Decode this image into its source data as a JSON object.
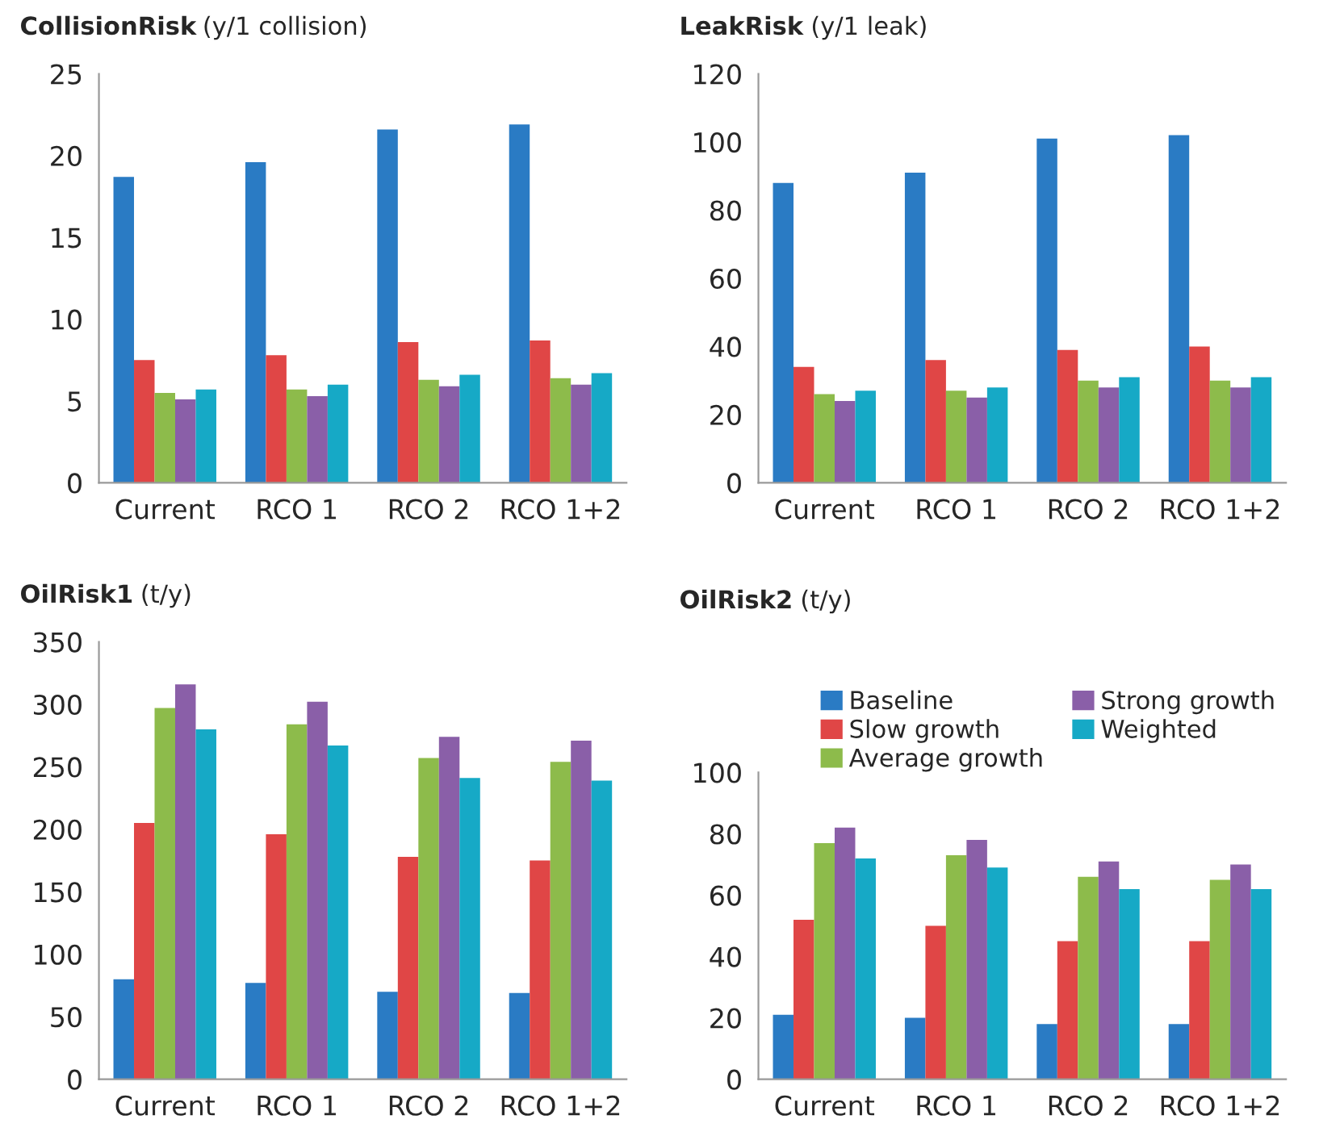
{
  "chart_data": [
    {
      "type": "bar",
      "title": "CollisionRisk",
      "subtitle": "(y/1 collision)",
      "categories": [
        "Current",
        "RCO 1",
        "RCO 2",
        "RCO 1+2"
      ],
      "ylim": [
        0,
        25
      ],
      "yticks": [
        0,
        5,
        10,
        15,
        20,
        25
      ],
      "grid": false,
      "legend": false,
      "series": [
        {
          "color": "#2a7bc4",
          "values": [
            18.7,
            19.6,
            21.6,
            21.9
          ]
        },
        {
          "color": "#e04646",
          "values": [
            7.5,
            7.8,
            8.6,
            8.7
          ]
        },
        {
          "color": "#8dbb4b",
          "values": [
            5.5,
            5.7,
            6.3,
            6.4
          ]
        },
        {
          "color": "#8a5fa8",
          "values": [
            5.1,
            5.3,
            5.9,
            6.0
          ]
        },
        {
          "color": "#16a9c6",
          "values": [
            5.7,
            6.0,
            6.6,
            6.7
          ]
        }
      ]
    },
    {
      "type": "bar",
      "title": "LeakRisk",
      "subtitle": "(y/1 leak)",
      "categories": [
        "Current",
        "RCO 1",
        "RCO 2",
        "RCO 1+2"
      ],
      "ylim": [
        0,
        120
      ],
      "yticks": [
        0,
        20,
        40,
        60,
        80,
        100,
        120
      ],
      "grid": false,
      "legend": false,
      "series": [
        {
          "color": "#2a7bc4",
          "values": [
            88,
            91,
            101,
            102
          ]
        },
        {
          "color": "#e04646",
          "values": [
            34,
            36,
            39,
            40
          ]
        },
        {
          "color": "#8dbb4b",
          "values": [
            26,
            27,
            30,
            30
          ]
        },
        {
          "color": "#8a5fa8",
          "values": [
            24,
            25,
            28,
            28
          ]
        },
        {
          "color": "#16a9c6",
          "values": [
            27,
            28,
            31,
            31
          ]
        }
      ]
    },
    {
      "type": "bar",
      "title": "OilRisk1",
      "subtitle": "(t/y)",
      "categories": [
        "Current",
        "RCO 1",
        "RCO 2",
        "RCO 1+2"
      ],
      "ylim": [
        0,
        350
      ],
      "yticks": [
        0,
        50,
        100,
        150,
        200,
        250,
        300,
        350
      ],
      "grid": false,
      "legend": false,
      "series": [
        {
          "color": "#2a7bc4",
          "values": [
            80,
            77,
            70,
            69
          ]
        },
        {
          "color": "#e04646",
          "values": [
            205,
            196,
            178,
            175
          ]
        },
        {
          "color": "#8dbb4b",
          "values": [
            297,
            284,
            257,
            254
          ]
        },
        {
          "color": "#8a5fa8",
          "values": [
            316,
            302,
            274,
            271
          ]
        },
        {
          "color": "#16a9c6",
          "values": [
            280,
            267,
            241,
            239
          ]
        }
      ]
    },
    {
      "type": "bar",
      "title": "OilRisk2",
      "subtitle": "(t/y)",
      "categories": [
        "Current",
        "RCO 1",
        "RCO 2",
        "RCO 1+2"
      ],
      "ylim": [
        0,
        100
      ],
      "yticks": [
        0,
        20,
        40,
        60,
        80,
        100
      ],
      "grid": false,
      "legend": "top",
      "series": [
        {
          "name": "Baseline",
          "color": "#2a7bc4",
          "values": [
            21,
            20,
            18,
            18
          ]
        },
        {
          "name": "Slow growth",
          "color": "#e04646",
          "values": [
            52,
            50,
            45,
            45
          ]
        },
        {
          "name": "Average growth",
          "color": "#8dbb4b",
          "values": [
            77,
            73,
            66,
            65
          ]
        },
        {
          "name": "Strong growth",
          "color": "#8a5fa8",
          "values": [
            82,
            78,
            71,
            70
          ]
        },
        {
          "name": "Weighted",
          "color": "#16a9c6",
          "values": [
            72,
            69,
            62,
            62
          ]
        }
      ]
    }
  ]
}
